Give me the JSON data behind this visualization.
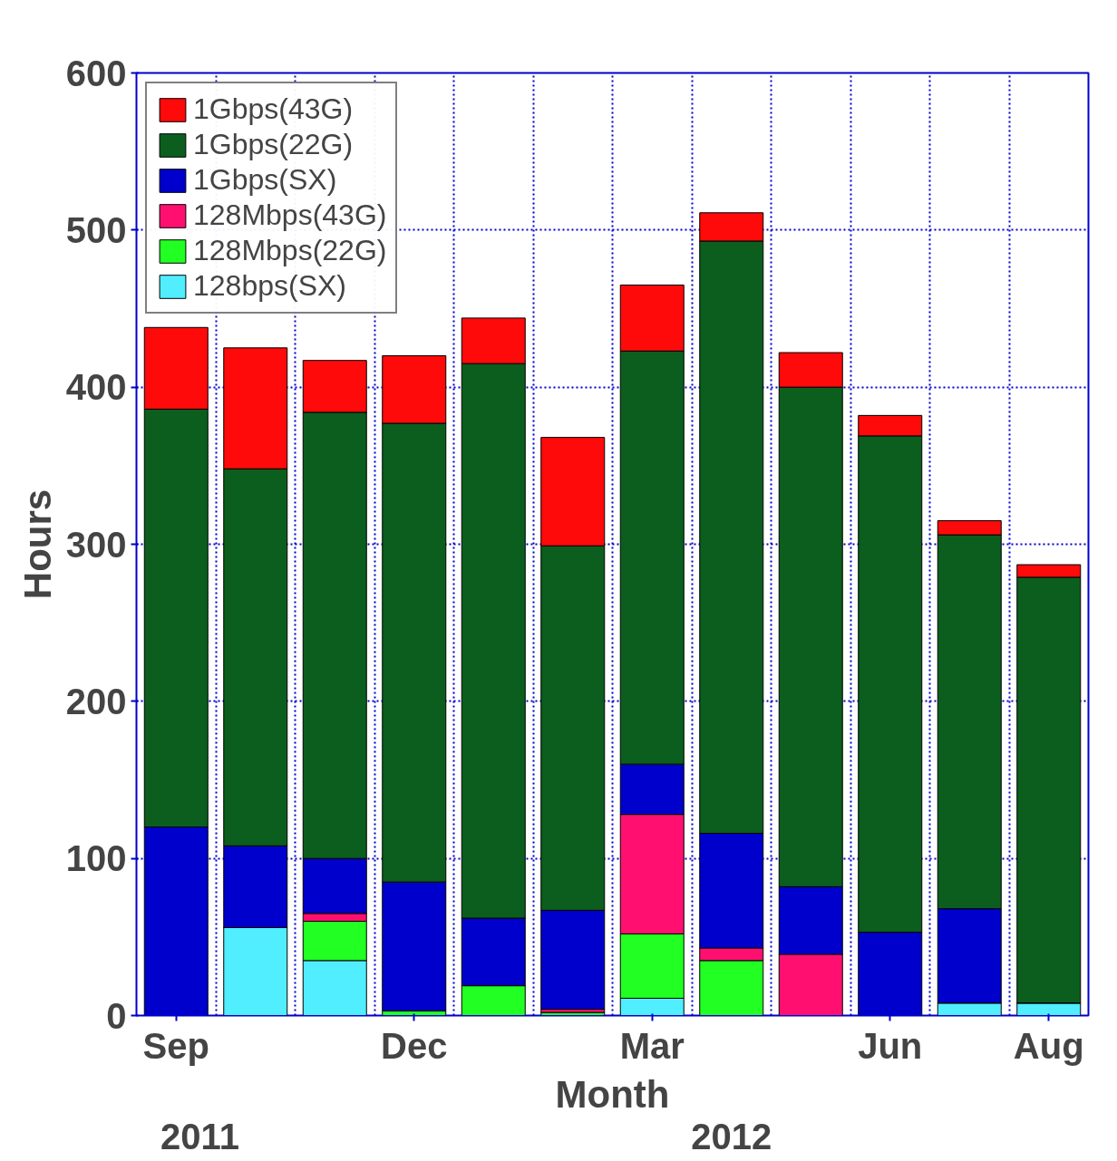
{
  "chart_data": {
    "type": "bar",
    "stacked": true,
    "xlabel": "Month",
    "ylabel": "Hours",
    "categories": [
      "Sep",
      null,
      null,
      "Dec",
      null,
      null,
      "Mar",
      null,
      null,
      "Jun",
      null,
      "Aug"
    ],
    "series": [
      {
        "name": "128bps(SX)",
        "color": "#50eeff",
        "values": [
          0,
          56,
          35,
          0,
          0,
          0,
          11,
          0,
          0,
          0,
          8,
          8
        ]
      },
      {
        "name": "128Mbps(22G)",
        "color": "#22ff22",
        "values": [
          0,
          0,
          25,
          3,
          19,
          2,
          41,
          35,
          0,
          0,
          0,
          0
        ]
      },
      {
        "name": "128Mbps(43G)",
        "color": "#ff1070",
        "values": [
          0,
          0,
          5,
          0,
          0,
          2,
          76,
          8,
          39,
          0,
          0,
          0
        ]
      },
      {
        "name": "1Gbps(SX)",
        "color": "#0000cc",
        "values": [
          120,
          52,
          35,
          82,
          43,
          63,
          32,
          73,
          43,
          53,
          60,
          0
        ]
      },
      {
        "name": "1Gbps(22G)",
        "color": "#0b5e1e",
        "values": [
          266,
          240,
          284,
          292,
          353,
          232,
          263,
          377,
          318,
          316,
          238,
          271
        ]
      },
      {
        "name": "1Gbps(43G)",
        "color": "#ff0a0a",
        "values": [
          52,
          77,
          33,
          43,
          29,
          69,
          42,
          18,
          22,
          13,
          9,
          8
        ]
      }
    ],
    "ylim": [
      0,
      600
    ],
    "yticks": [
      0,
      100,
      200,
      300,
      400,
      500,
      600
    ],
    "grid": true,
    "legend": "top left",
    "annotations": [
      "2011",
      "2012"
    ]
  }
}
